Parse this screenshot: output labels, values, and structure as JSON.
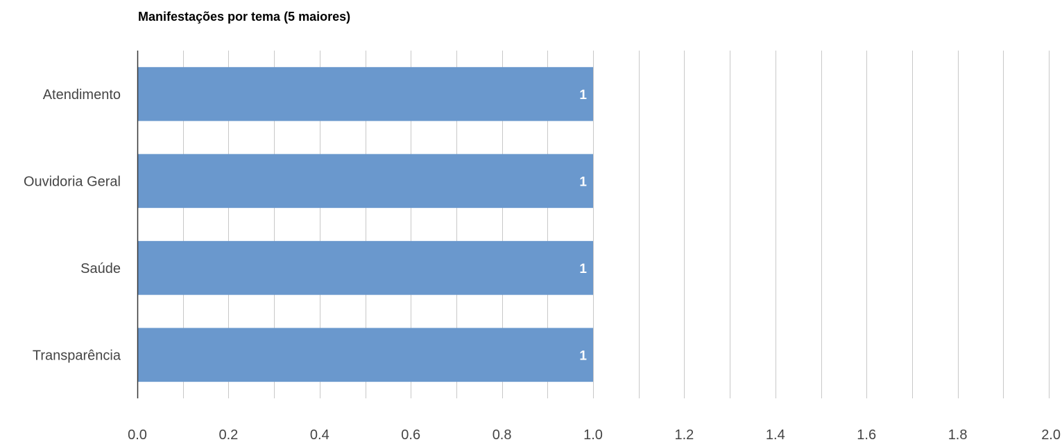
{
  "chart_data": {
    "type": "bar",
    "orientation": "horizontal",
    "title": "Manifestações por tema (5 maiores)",
    "xlabel": "",
    "ylabel": "",
    "categories": [
      "Atendimento",
      "Ouvidoria Geral",
      "Saúde",
      "Transparência"
    ],
    "values": [
      1,
      1,
      1,
      1
    ],
    "data_labels": [
      "1",
      "1",
      "1",
      "1"
    ],
    "xlim": [
      0,
      2
    ],
    "x_ticks": [
      "0.0",
      "0.2",
      "0.4",
      "0.6",
      "0.8",
      "1.0",
      "1.2",
      "1.4",
      "1.6",
      "1.8",
      "2.0"
    ],
    "minor_gridlines": true,
    "grid": true,
    "legend": "none",
    "colors": {
      "bar": "#6a98cd",
      "grid": "#c8c8c8",
      "axis": "#333333",
      "label": "#444444",
      "data_label": "#ffffff"
    }
  }
}
